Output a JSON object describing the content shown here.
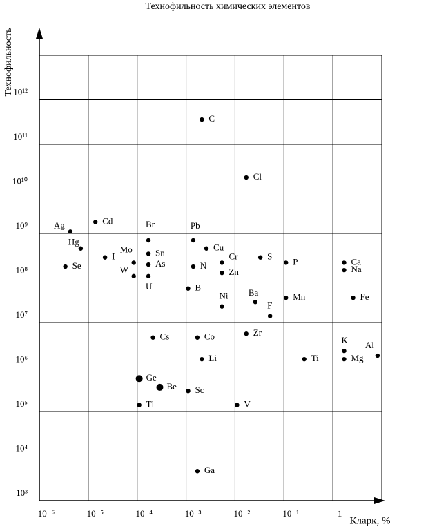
{
  "chart_data": {
    "type": "scatter",
    "title": "Технофильность химических элементов",
    "x_label": "Кларк, %",
    "y_label": "Технофильность",
    "x_scale": "log",
    "y_scale": "log",
    "grid": true,
    "color": "#000000",
    "xlim": [
      1e-06,
      10
    ],
    "ylim": [
      1000,
      10000000000000.0
    ],
    "xticks": [
      {
        "value": 1e-06,
        "label": "10⁻⁶"
      },
      {
        "value": 1e-05,
        "label": "10⁻⁵"
      },
      {
        "value": 0.0001,
        "label": "10⁻⁴"
      },
      {
        "value": 0.001,
        "label": "10⁻³"
      },
      {
        "value": 0.01,
        "label": "10⁻²"
      },
      {
        "value": 0.1,
        "label": "10⁻¹"
      },
      1
    ],
    "yticks": [
      {
        "value": 1000,
        "label": "10³"
      },
      {
        "value": 10000,
        "label": "10⁴"
      },
      {
        "value": 100000,
        "label": "10⁵"
      },
      {
        "value": 1000000,
        "label": "10⁶"
      },
      {
        "value": 10000000,
        "label": "10⁷"
      },
      {
        "value": 100000000,
        "label": "10⁸"
      },
      {
        "value": 1000000000,
        "label": "10⁹"
      },
      {
        "value": 10000000000,
        "label": "10¹⁰"
      },
      {
        "value": 100000000000,
        "label": "10¹¹"
      },
      {
        "value": 1000000000000,
        "label": "10¹²"
      }
    ],
    "labels": [
      "C",
      "Cl",
      "Ag",
      "Cd",
      "Hg",
      "I",
      "Se",
      "Mo",
      "W",
      "Br",
      "Sn",
      "As",
      "U",
      "Pb",
      "Cu",
      "N",
      "Cr",
      "Zn",
      "S",
      "P",
      "Ca",
      "Na",
      "B",
      "Ba",
      "Ni",
      "F",
      "Mn",
      "Fe",
      "Zr",
      "Cs",
      "Co",
      "Li",
      "K",
      "Al",
      "Mg",
      "Ti",
      "Ge",
      "Be",
      "Sc",
      "Tl",
      "V",
      "Ga"
    ],
    "x": [
      0.0021,
      0.017,
      4.3e-06,
      1.4e-05,
      7e-06,
      2.2e-05,
      3.4e-06,
      8.5e-05,
      8.5e-05,
      0.00017,
      0.00017,
      0.00017,
      0.00017,
      0.0014,
      0.0026,
      0.0014,
      0.0054,
      0.0054,
      0.033,
      0.11,
      1.7,
      1.7,
      0.0011,
      0.026,
      0.0054,
      0.052,
      0.11,
      2.6,
      0.017,
      0.00021,
      0.0017,
      0.0021,
      1.7,
      8.2,
      1.7,
      0.26,
      0.00011,
      0.00029,
      0.0011,
      0.00011,
      0.011,
      0.0017
    ],
    "y": [
      360000000000,
      18000000000,
      1100000000,
      1800000000,
      460000000,
      290000000,
      180000000,
      220000000,
      110000000,
      700000000,
      350000000,
      200000000,
      110000000,
      700000000,
      460000000,
      180000000,
      220000000,
      130000000,
      290000000,
      220000000,
      220000000,
      150000000,
      58000000,
      29000000,
      23000000,
      14000000,
      36000000,
      36000000,
      5600000,
      4600000,
      4600000,
      1500000,
      2300000,
      1800000,
      1500000,
      1500000,
      550000,
      350000,
      290000,
      140000,
      140000,
      4600
    ]
  }
}
